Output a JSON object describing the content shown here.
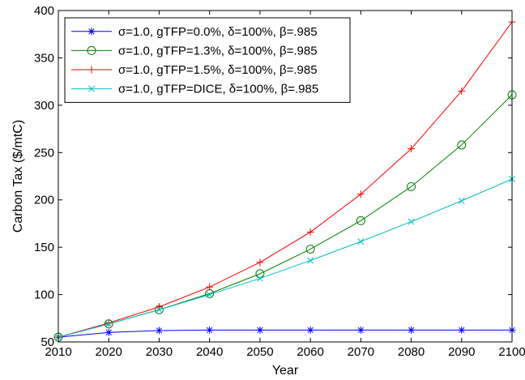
{
  "chart_data": {
    "type": "line",
    "title": "",
    "xlabel": "Year",
    "ylabel": "Carbon Tax ($/mtC)",
    "x": [
      2010,
      2020,
      2030,
      2040,
      2050,
      2060,
      2070,
      2080,
      2090,
      2100
    ],
    "xlim": [
      2010,
      2100
    ],
    "ylim": [
      50,
      400
    ],
    "xticks": [
      "2010",
      "2020",
      "2030",
      "2040",
      "2050",
      "2060",
      "2070",
      "2080",
      "2090",
      "2100"
    ],
    "yticks": [
      "50",
      "100",
      "150",
      "200",
      "250",
      "300",
      "350",
      "400"
    ],
    "grid": false,
    "legend_position": "top-left",
    "series": [
      {
        "name": "σ=1.0, gTFP=0.0%, δ=100%, β=.985",
        "color": "#0000ff",
        "marker": "asterisk",
        "values": [
          55,
          60,
          62,
          62.5,
          62.5,
          62.5,
          62.5,
          62.5,
          62.5,
          62.5
        ]
      },
      {
        "name": "σ=1.0, gTFP=1.3%, δ=100%, β=.985",
        "color": "#008000",
        "marker": "circle",
        "values": [
          55,
          69,
          84,
          101,
          122,
          148,
          178,
          214,
          258,
          311
        ]
      },
      {
        "name": "σ=1.0, gTFP=1.5%, δ=100%, β=.985",
        "color": "#ff0000",
        "marker": "plus",
        "values": [
          55,
          70,
          87,
          108,
          134,
          166,
          206,
          254,
          315,
          388
        ]
      },
      {
        "name": "σ=1.0, gTFP=DICE, δ=100%, β=.985",
        "color": "#00bfbf",
        "marker": "x",
        "values": [
          55,
          69,
          84,
          100,
          117,
          136,
          156,
          177,
          199,
          222
        ]
      }
    ]
  }
}
